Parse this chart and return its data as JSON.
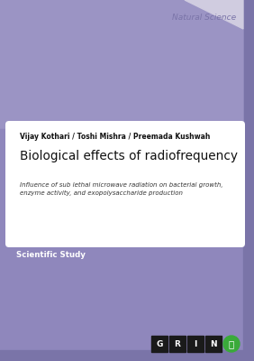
{
  "bg_color": "#8f87bc",
  "inner_bg_color": "#8f87bc",
  "white_panel_color": "#ffffff",
  "category_text": "Natural Science",
  "category_color": "#7a74a8",
  "author_text": "Vijay Kothari / Toshi Mishra / Preemada Kushwah",
  "title_text": "Biological effects of radiofrequency",
  "subtitle_text": "Influence of sub lethal microwave radiation on bacterial growth,\nenzyme activity, and exopolysaccharide production",
  "badge_text": "Scientific Study",
  "grin_letters": [
    "G",
    "R",
    "I",
    "N"
  ],
  "grin_dark_color": "#1a1a1a",
  "grin_green_color": "#3aaa3a",
  "flap_color": "#9b94c4",
  "fold_color": "#d0cce0",
  "outer_border_color": "#7a74a8"
}
